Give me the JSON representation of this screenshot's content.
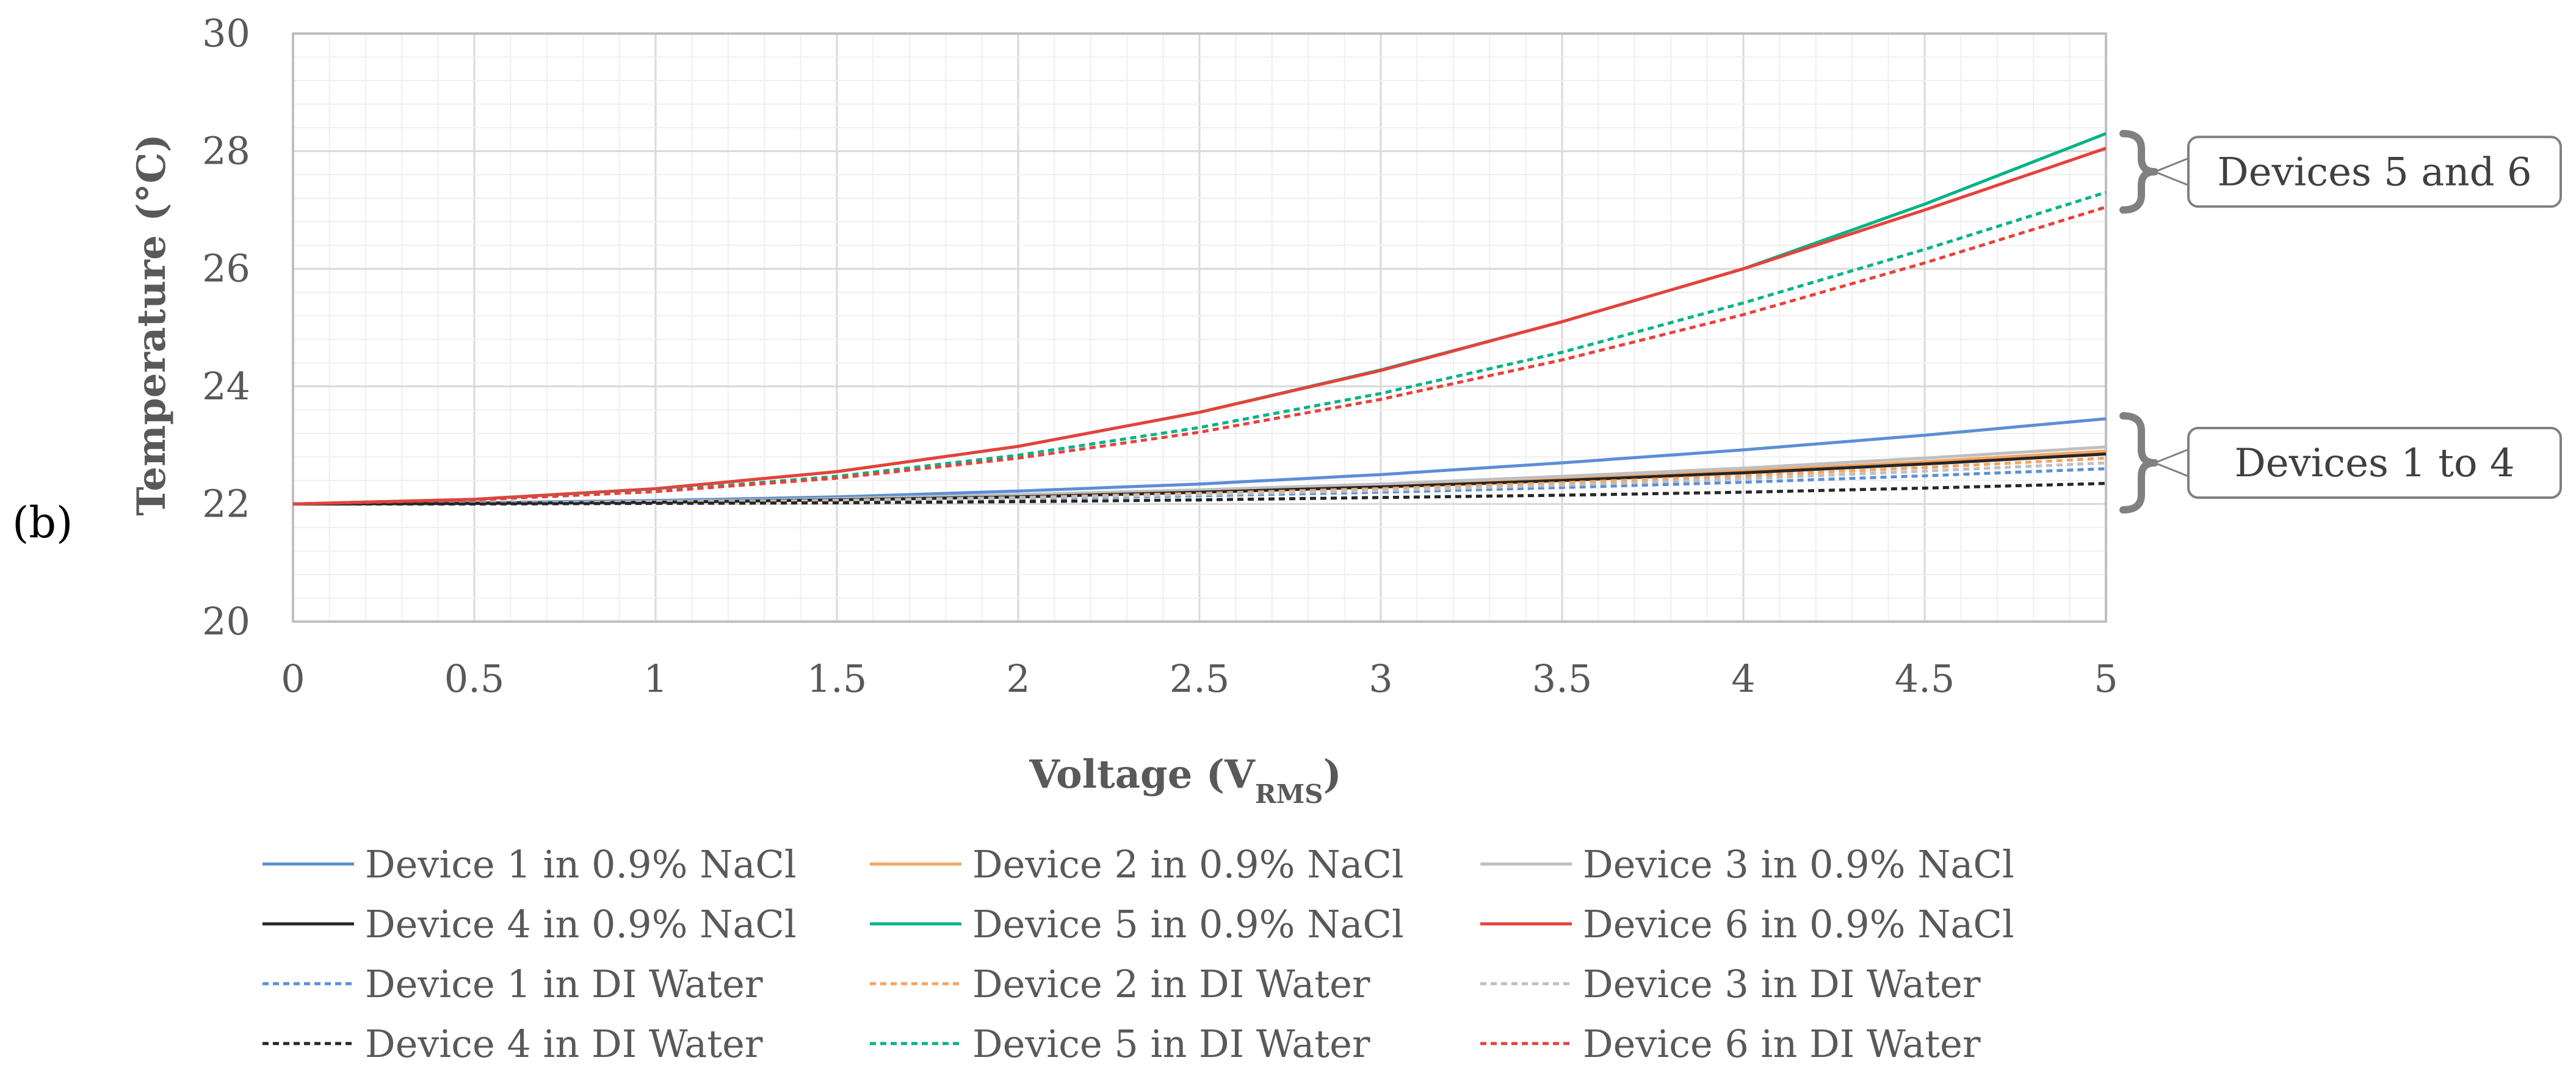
{
  "panel_label": "(b)",
  "callouts": [
    {
      "label": "Devices 5 and 6",
      "range": [
        27,
        28.3
      ]
    },
    {
      "label": "Devices 1 to 4",
      "range": [
        21.9,
        23.5
      ]
    }
  ],
  "chart_data": {
    "type": "line",
    "title": "",
    "xlabel": "Voltage (V",
    "xlabel_sub": "RMS",
    "xlabel_end": ")",
    "ylabel": "Temperature (°C)",
    "xlim": [
      0,
      5
    ],
    "ylim": [
      20,
      30
    ],
    "grid": true,
    "legend_position": "bottom",
    "x_ticks": [
      "0",
      "0.5",
      "1",
      "1.5",
      "2",
      "2.5",
      "3",
      "3.5",
      "4",
      "4.5",
      "5"
    ],
    "y_ticks": [
      "20",
      "22",
      "24",
      "26",
      "28",
      "30"
    ],
    "x": [
      0,
      0.5,
      1,
      1.5,
      2,
      2.5,
      3,
      3.5,
      4,
      4.5,
      5
    ],
    "series": [
      {
        "name": "Device 1 in 0.9% NaCl",
        "color": "#5B8FD6",
        "dashed": false,
        "values": [
          22.0,
          22.02,
          22.06,
          22.12,
          22.22,
          22.34,
          22.5,
          22.7,
          22.92,
          23.17,
          23.45
        ]
      },
      {
        "name": "Device 2 in 0.9% NaCl",
        "color": "#F4A460",
        "dashed": false,
        "values": [
          22.0,
          22.01,
          22.03,
          22.07,
          22.13,
          22.21,
          22.3,
          22.42,
          22.56,
          22.72,
          22.9
        ]
      },
      {
        "name": "Device 3 in 0.9% NaCl",
        "color": "#BFBFBF",
        "dashed": false,
        "values": [
          22.0,
          22.01,
          22.04,
          22.09,
          22.16,
          22.24,
          22.34,
          22.47,
          22.61,
          22.78,
          22.97
        ]
      },
      {
        "name": "Device 4 in 0.9% NaCl",
        "color": "#262626",
        "dashed": false,
        "values": [
          22.0,
          22.01,
          22.03,
          22.07,
          22.12,
          22.2,
          22.29,
          22.4,
          22.53,
          22.68,
          22.85
        ]
      },
      {
        "name": "Device 5 in 0.9% NaCl",
        "color": "#00B386",
        "dashed": false,
        "values": [
          22.0,
          22.08,
          22.26,
          22.55,
          22.98,
          23.56,
          24.28,
          25.1,
          26.0,
          27.1,
          28.3
        ]
      },
      {
        "name": "Device 6 in 0.9% NaCl",
        "color": "#E8413A",
        "dashed": false,
        "values": [
          22.0,
          22.08,
          22.26,
          22.55,
          22.98,
          23.56,
          24.27,
          25.1,
          26.0,
          27.0,
          28.05
        ]
      },
      {
        "name": "Device 1 in DI Water",
        "color": "#5B8FD6",
        "dashed": true,
        "values": [
          22.0,
          22.01,
          22.02,
          22.05,
          22.09,
          22.14,
          22.2,
          22.28,
          22.37,
          22.48,
          22.6
        ]
      },
      {
        "name": "Device 2 in DI Water",
        "color": "#F4A460",
        "dashed": true,
        "values": [
          22.0,
          22.01,
          22.03,
          22.06,
          22.11,
          22.18,
          22.26,
          22.36,
          22.48,
          22.62,
          22.78
        ]
      },
      {
        "name": "Device 3 in DI Water",
        "color": "#BFBFBF",
        "dashed": true,
        "values": [
          22.0,
          22.01,
          22.03,
          22.06,
          22.1,
          22.16,
          22.23,
          22.32,
          22.43,
          22.56,
          22.7
        ]
      },
      {
        "name": "Device 4 in DI Water",
        "color": "#262626",
        "dashed": true,
        "values": [
          22.0,
          22.0,
          22.01,
          22.02,
          22.04,
          22.07,
          22.11,
          22.15,
          22.2,
          22.27,
          22.35
        ]
      },
      {
        "name": "Device 5 in DI Water",
        "color": "#00B386",
        "dashed": true,
        "values": [
          22.0,
          22.07,
          22.22,
          22.47,
          22.83,
          23.3,
          23.88,
          24.58,
          25.42,
          26.33,
          27.3
        ]
      },
      {
        "name": "Device 6 in DI Water",
        "color": "#E8413A",
        "dashed": true,
        "values": [
          22.0,
          22.07,
          22.21,
          22.44,
          22.78,
          23.22,
          23.78,
          24.45,
          25.22,
          26.1,
          27.05
        ]
      }
    ]
  }
}
